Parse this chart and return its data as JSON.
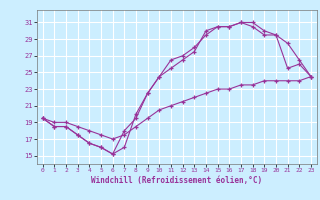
{
  "title": "",
  "xlabel": "Windchill (Refroidissement éolien,°C)",
  "bg_color": "#cceeff",
  "grid_color": "#ffffff",
  "line_color": "#993399",
  "x_ticks": [
    0,
    1,
    2,
    3,
    4,
    5,
    6,
    7,
    8,
    9,
    10,
    11,
    12,
    13,
    14,
    15,
    16,
    17,
    18,
    19,
    20,
    21,
    22,
    23
  ],
  "y_ticks": [
    15,
    17,
    19,
    21,
    23,
    25,
    27,
    29,
    31
  ],
  "xlim": [
    -0.5,
    23.5
  ],
  "ylim": [
    14.0,
    32.5
  ],
  "line1_x": [
    0,
    1,
    2,
    3,
    4,
    5,
    6,
    7,
    8,
    9,
    10,
    11,
    12,
    13,
    14,
    15,
    16,
    17,
    18,
    19,
    20,
    21,
    22,
    23
  ],
  "line1_y": [
    19.5,
    18.5,
    18.5,
    17.5,
    16.5,
    16.0,
    15.2,
    16.0,
    20.0,
    22.5,
    24.5,
    26.5,
    27.0,
    28.0,
    29.5,
    30.5,
    30.5,
    31.0,
    31.0,
    30.0,
    29.5,
    25.5,
    26.0,
    24.5
  ],
  "line2_x": [
    0,
    1,
    2,
    3,
    4,
    5,
    6,
    7,
    8,
    9,
    10,
    11,
    12,
    13,
    14,
    15,
    16,
    17,
    18,
    19,
    20,
    21,
    22,
    23
  ],
  "line2_y": [
    19.5,
    18.5,
    18.5,
    17.5,
    16.5,
    16.0,
    15.2,
    18.0,
    19.5,
    22.5,
    24.5,
    25.5,
    26.5,
    27.5,
    30.0,
    30.5,
    30.5,
    31.0,
    30.5,
    29.5,
    29.5,
    28.5,
    26.5,
    24.5
  ],
  "line3_x": [
    0,
    1,
    2,
    3,
    4,
    5,
    6,
    7,
    8,
    9,
    10,
    11,
    12,
    13,
    14,
    15,
    16,
    17,
    18,
    19,
    20,
    21,
    22,
    23
  ],
  "line3_y": [
    19.5,
    19.0,
    19.0,
    18.5,
    18.0,
    17.5,
    17.0,
    17.5,
    18.5,
    19.5,
    20.5,
    21.0,
    21.5,
    22.0,
    22.5,
    23.0,
    23.0,
    23.5,
    23.5,
    24.0,
    24.0,
    24.0,
    24.0,
    24.5
  ]
}
